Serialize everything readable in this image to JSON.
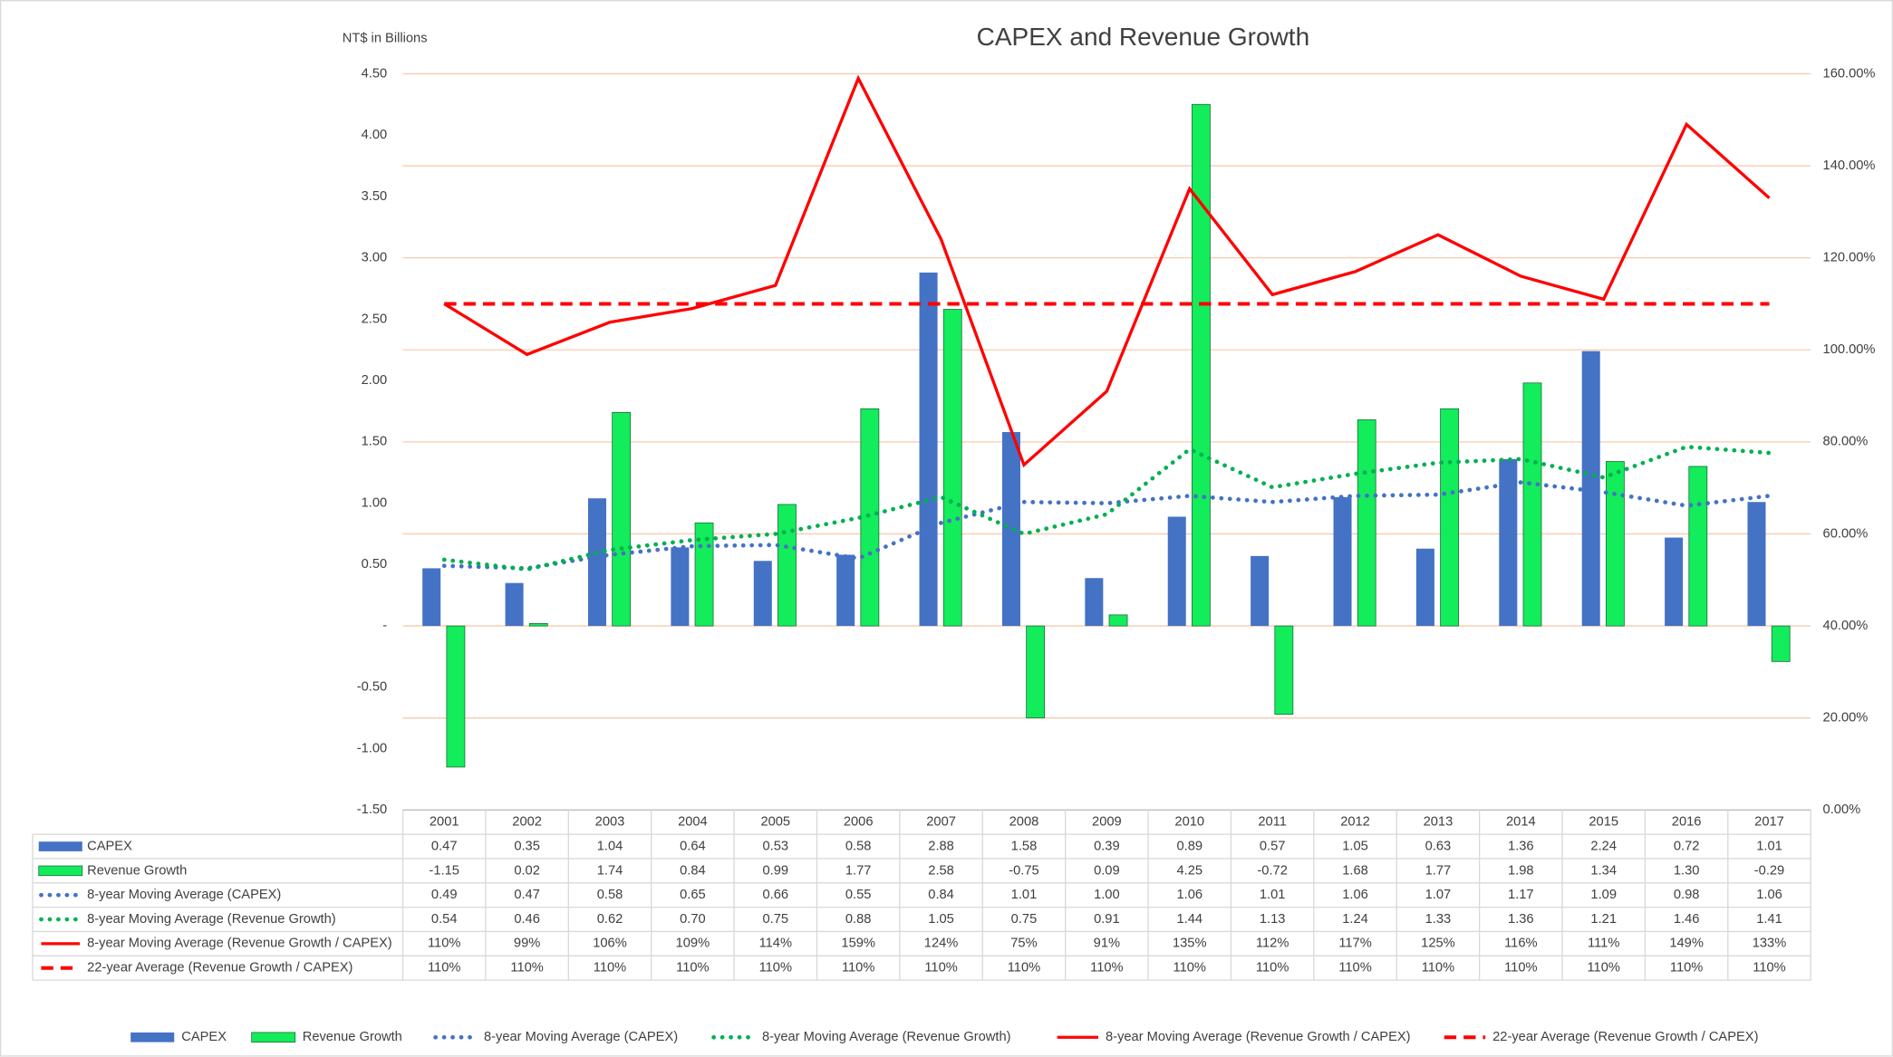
{
  "chart_data": {
    "type": "bar",
    "title": "CAPEX and Revenue Growth",
    "y_label": "NT$ in Billions",
    "categories": [
      "2001",
      "2002",
      "2003",
      "2004",
      "2005",
      "2006",
      "2007",
      "2008",
      "2009",
      "2010",
      "2011",
      "2012",
      "2013",
      "2014",
      "2015",
      "2016",
      "2017"
    ],
    "ylim": [
      -1.5,
      4.5
    ],
    "yticks": [
      {
        "value": 4.5,
        "label": "4.50"
      },
      {
        "value": 4,
        "label": "4.00"
      },
      {
        "value": 3.5,
        "label": "3.50"
      },
      {
        "value": 3,
        "label": "3.00"
      },
      {
        "value": 2.5,
        "label": "2.50"
      },
      {
        "value": 2,
        "label": "2.00"
      },
      {
        "value": 1.5,
        "label": "1.50"
      },
      {
        "value": 1,
        "label": "1.00"
      },
      {
        "value": 0.5,
        "label": "0.50"
      },
      {
        "value": 0,
        "label": "-"
      },
      {
        "value": -0.5,
        "label": "-0.50"
      },
      {
        "value": -1,
        "label": "-1.00"
      },
      {
        "value": -1.5,
        "label": "-1.50"
      }
    ],
    "y2lim": [
      0,
      160
    ],
    "y2ticks": [
      {
        "value": 160,
        "label": "160.00%"
      },
      {
        "value": 140,
        "label": "140.00%"
      },
      {
        "value": 120,
        "label": "120.00%"
      },
      {
        "value": 100,
        "label": "100.00%"
      },
      {
        "value": 80,
        "label": "80.00%"
      },
      {
        "value": 60,
        "label": "60.00%"
      },
      {
        "value": 40,
        "label": "40.00%"
      },
      {
        "value": 20,
        "label": "20.00%"
      },
      {
        "value": 0,
        "label": "0.00%"
      }
    ],
    "grid": true,
    "legend": "bottom",
    "series": [
      {
        "name": "CAPEX",
        "kind": "bar",
        "color": "#4472c4",
        "values": [
          0.47,
          0.35,
          1.04,
          0.64,
          0.53,
          0.58,
          2.88,
          1.58,
          0.39,
          0.89,
          0.57,
          1.05,
          0.63,
          1.36,
          2.24,
          0.72,
          1.01
        ],
        "value_labels": [
          "0.47",
          "0.35",
          "1.04",
          "0.64",
          "0.53",
          "0.58",
          "2.88",
          "1.58",
          "0.39",
          "0.89",
          "0.57",
          "1.05",
          "0.63",
          "1.36",
          "2.24",
          "0.72",
          "1.01"
        ]
      },
      {
        "name": "Revenue Growth",
        "kind": "bar",
        "color": "#13ec5b",
        "values": [
          -1.15,
          0.02,
          1.74,
          0.84,
          0.99,
          1.77,
          2.58,
          -0.75,
          0.09,
          4.25,
          -0.72,
          1.68,
          1.77,
          1.98,
          1.34,
          1.3,
          -0.29
        ],
        "value_labels": [
          "-1.15",
          "0.02",
          "1.74",
          "0.84",
          "0.99",
          "1.77",
          "2.58",
          "-0.75",
          "0.09",
          "4.25",
          "-0.72",
          "1.68",
          "1.77",
          "1.98",
          "1.34",
          "1.30",
          "-0.29"
        ]
      },
      {
        "name": "8-year Moving Average (CAPEX)",
        "kind": "line",
        "dash": "dotted",
        "color": "#4472c4",
        "values": [
          0.49,
          0.47,
          0.58,
          0.65,
          0.66,
          0.55,
          0.84,
          1.01,
          1,
          1.06,
          1.01,
          1.06,
          1.07,
          1.17,
          1.09,
          0.98,
          1.06
        ],
        "value_labels": [
          "0.49",
          "0.47",
          "0.58",
          "0.65",
          "0.66",
          "0.55",
          "0.84",
          "1.01",
          "1.00",
          "1.06",
          "1.01",
          "1.06",
          "1.07",
          "1.17",
          "1.09",
          "0.98",
          "1.06"
        ]
      },
      {
        "name": "8-year Moving Average (Revenue Growth)",
        "kind": "line",
        "dash": "dotted",
        "color": "#00b050",
        "values": [
          0.54,
          0.46,
          0.62,
          0.7,
          0.75,
          0.88,
          1.05,
          0.75,
          0.91,
          1.44,
          1.13,
          1.24,
          1.33,
          1.36,
          1.21,
          1.46,
          1.41
        ],
        "value_labels": [
          "0.54",
          "0.46",
          "0.62",
          "0.70",
          "0.75",
          "0.88",
          "1.05",
          "0.75",
          "0.91",
          "1.44",
          "1.13",
          "1.24",
          "1.33",
          "1.36",
          "1.21",
          "1.46",
          "1.41"
        ]
      },
      {
        "name": "8-year Moving Average (Revenue Growth / CAPEX)",
        "kind": "line",
        "dash": "solid",
        "color": "#ff0000",
        "axis": "y2",
        "values": [
          110,
          99,
          106,
          109,
          114,
          159,
          124,
          75,
          91,
          135,
          112,
          117,
          125,
          116,
          111,
          149,
          133
        ],
        "value_labels": [
          "110%",
          "99%",
          "106%",
          "109%",
          "114%",
          "159%",
          "124%",
          "75%",
          "91%",
          "135%",
          "112%",
          "117%",
          "125%",
          "116%",
          "111%",
          "149%",
          "133%"
        ]
      },
      {
        "name": "22-year Average (Revenue Growth / CAPEX)",
        "kind": "line",
        "dash": "dashed",
        "color": "#ff0000",
        "axis": "y2",
        "values": [
          110,
          110,
          110,
          110,
          110,
          110,
          110,
          110,
          110,
          110,
          110,
          110,
          110,
          110,
          110,
          110,
          110
        ],
        "value_labels": [
          "110%",
          "110%",
          "110%",
          "110%",
          "110%",
          "110%",
          "110%",
          "110%",
          "110%",
          "110%",
          "110%",
          "110%",
          "110%",
          "110%",
          "110%",
          "110%",
          "110%"
        ]
      }
    ]
  }
}
